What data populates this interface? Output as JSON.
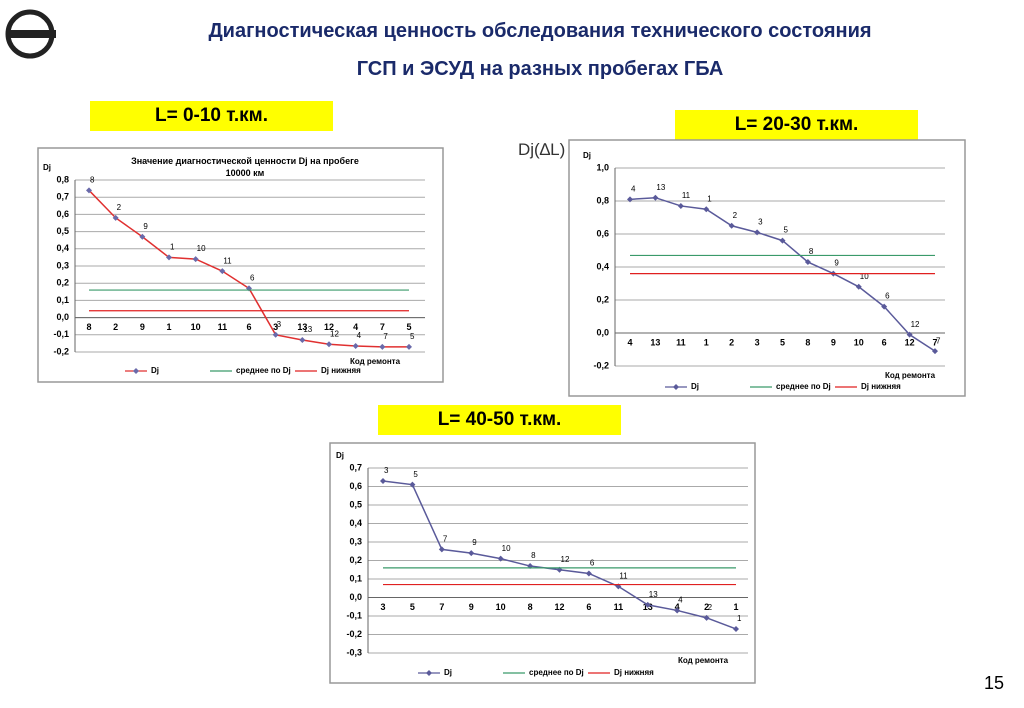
{
  "slide": {
    "title_line1": "Диагностическая ценность обследования технического состояния",
    "title_line2": "ГСП и ЭСУД на разных пробегах ГБА",
    "label1": "L= 0-10 т.км.",
    "label2": "L= 20-30 т.км.",
    "label3": "L= 40-50 т.км.",
    "annotation": "Dj(∆L)",
    "page_number": "15"
  },
  "chart_data": [
    {
      "type": "line",
      "title": "Значение диагностической ценности Dj на пробеге 10000 км",
      "y_label": "Dj",
      "x_label": "Код ремонта",
      "categories": [
        "8",
        "2",
        "9",
        "1",
        "10",
        "11",
        "6",
        "3",
        "13",
        "12",
        "4",
        "7",
        "5"
      ],
      "series": [
        {
          "name": "Dj",
          "color": "#e03030",
          "marker_color": "#6a6aaa",
          "values": [
            0.74,
            0.58,
            0.47,
            0.35,
            0.34,
            0.27,
            0.17,
            -0.1,
            -0.13,
            -0.155,
            -0.165,
            -0.17,
            -0.17
          ]
        },
        {
          "name": "среднее по Dj",
          "color": "#3a9a6a",
          "values": [
            0.16,
            0.16,
            0.16,
            0.16,
            0.16,
            0.16,
            0.16,
            0.16,
            0.16,
            0.16,
            0.16,
            0.16,
            0.16
          ]
        },
        {
          "name": "Dj нижняя",
          "color": "#e02020",
          "values": [
            0.04,
            0.04,
            0.04,
            0.04,
            0.04,
            0.04,
            0.04,
            0.04,
            0.04,
            0.04,
            0.04,
            0.04,
            0.04
          ]
        }
      ],
      "ylim": [
        -0.2,
        0.8
      ],
      "yticks": [
        {
          "value": -0.2,
          "label": "-0,2"
        },
        {
          "value": -0.1,
          "label": "-0,1"
        },
        {
          "value": 0,
          "label": "0,0"
        },
        {
          "value": 0.1,
          "label": "0,1"
        },
        {
          "value": 0.2,
          "label": "0,2"
        },
        {
          "value": 0.3,
          "label": "0,3"
        },
        {
          "value": 0.4,
          "label": "0,4"
        },
        {
          "value": 0.5,
          "label": "0,5"
        },
        {
          "value": 0.6,
          "label": "0,6"
        },
        {
          "value": 0.7,
          "label": "0,7"
        },
        {
          "value": 0.8,
          "label": "0,8"
        }
      ],
      "grid": true
    },
    {
      "type": "line",
      "y_label": "Dj",
      "x_label": "Код ремонта",
      "categories": [
        "4",
        "13",
        "11",
        "1",
        "2",
        "3",
        "5",
        "8",
        "9",
        "10",
        "6",
        "12",
        "7"
      ],
      "series": [
        {
          "name": "Dj",
          "color": "#5a5a9a",
          "marker_color": "#5a5a9a",
          "values": [
            0.81,
            0.82,
            0.77,
            0.75,
            0.65,
            0.61,
            0.56,
            0.43,
            0.36,
            0.28,
            0.16,
            -0.01,
            -0.11
          ]
        },
        {
          "name": "среднее по Dj",
          "color": "#3a9a6a",
          "values": [
            0.47,
            0.47,
            0.47,
            0.47,
            0.47,
            0.47,
            0.47,
            0.47,
            0.47,
            0.47,
            0.47,
            0.47,
            0.47
          ]
        },
        {
          "name": "Dj нижняя",
          "color": "#e02020",
          "values": [
            0.36,
            0.36,
            0.36,
            0.36,
            0.36,
            0.36,
            0.36,
            0.36,
            0.36,
            0.36,
            0.36,
            0.36,
            0.36
          ]
        }
      ],
      "ylim": [
        -0.2,
        1.0
      ],
      "yticks": [
        {
          "value": -0.2,
          "label": "-0,2"
        },
        {
          "value": 0,
          "label": "0,0"
        },
        {
          "value": 0.2,
          "label": "0,2"
        },
        {
          "value": 0.4,
          "label": "0,4"
        },
        {
          "value": 0.6,
          "label": "0,6"
        },
        {
          "value": 0.8,
          "label": "0,8"
        },
        {
          "value": 1.0,
          "label": "1,0"
        }
      ],
      "grid": true
    },
    {
      "type": "line",
      "y_label": "Dj",
      "x_label": "Код ремонта",
      "categories": [
        "3",
        "5",
        "7",
        "9",
        "10",
        "8",
        "12",
        "6",
        "11",
        "13",
        "4",
        "2",
        "1"
      ],
      "series": [
        {
          "name": "Dj",
          "color": "#5a5a9a",
          "marker_color": "#5a5a9a",
          "values": [
            0.63,
            0.61,
            0.26,
            0.24,
            0.21,
            0.17,
            0.15,
            0.13,
            0.06,
            -0.04,
            -0.07,
            -0.11,
            -0.17
          ]
        },
        {
          "name": "среднее по Dj",
          "color": "#3a9a6a",
          "values": [
            0.16,
            0.16,
            0.16,
            0.16,
            0.16,
            0.16,
            0.16,
            0.16,
            0.16,
            0.16,
            0.16,
            0.16,
            0.16
          ]
        },
        {
          "name": "Dj нижняя",
          "color": "#e02020",
          "values": [
            0.07,
            0.07,
            0.07,
            0.07,
            0.07,
            0.07,
            0.07,
            0.07,
            0.07,
            0.07,
            0.07,
            0.07,
            0.07
          ]
        }
      ],
      "ylim": [
        -0.3,
        0.7
      ],
      "yticks": [
        {
          "value": -0.3,
          "label": "-0,3"
        },
        {
          "value": -0.2,
          "label": "-0,2"
        },
        {
          "value": -0.1,
          "label": "-0,1"
        },
        {
          "value": 0,
          "label": "0,0"
        },
        {
          "value": 0.1,
          "label": "0,1"
        },
        {
          "value": 0.2,
          "label": "0,2"
        },
        {
          "value": 0.3,
          "label": "0,3"
        },
        {
          "value": 0.4,
          "label": "0,4"
        },
        {
          "value": 0.5,
          "label": "0,5"
        },
        {
          "value": 0.6,
          "label": "0,6"
        },
        {
          "value": 0.7,
          "label": "0,7"
        }
      ],
      "grid": true
    }
  ]
}
